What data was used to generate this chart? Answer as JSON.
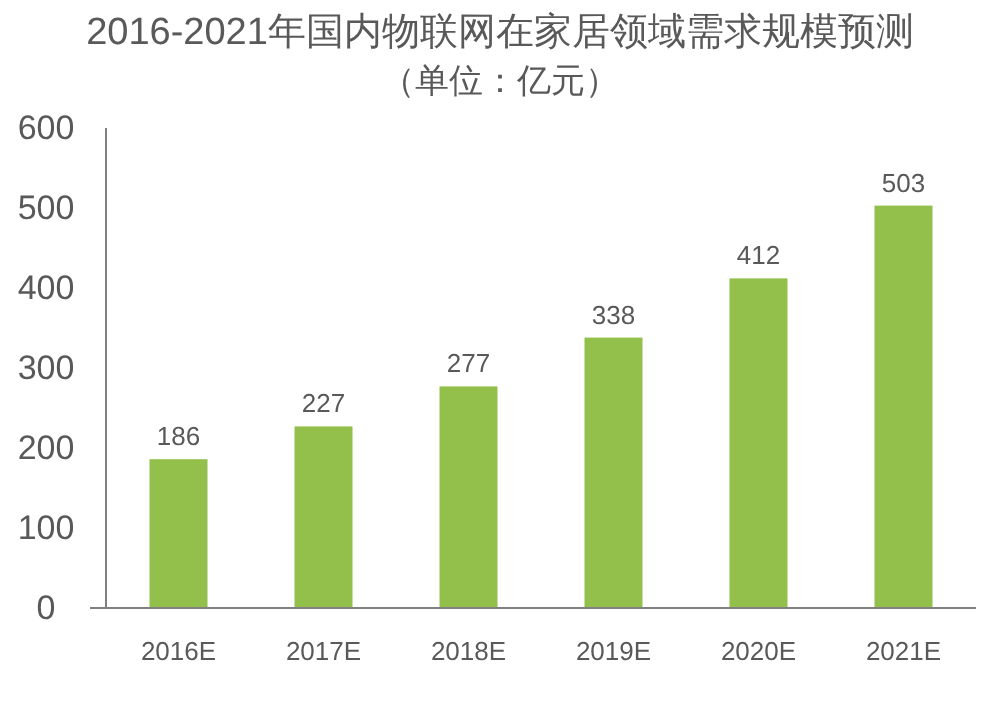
{
  "chart_data": {
    "type": "bar",
    "title": "2016-2021年国内物联网在家居领域需求规模预测",
    "subtitle": "（单位：亿元）",
    "categories": [
      "2016E",
      "2017E",
      "2018E",
      "2019E",
      "2020E",
      "2021E"
    ],
    "values": [
      186,
      227,
      277,
      338,
      412,
      503
    ],
    "color": "#92c04a",
    "ylim": [
      0,
      600
    ],
    "yticks": [
      0,
      100,
      200,
      300,
      400,
      500,
      600
    ],
    "grid": false,
    "data_labels": true
  }
}
